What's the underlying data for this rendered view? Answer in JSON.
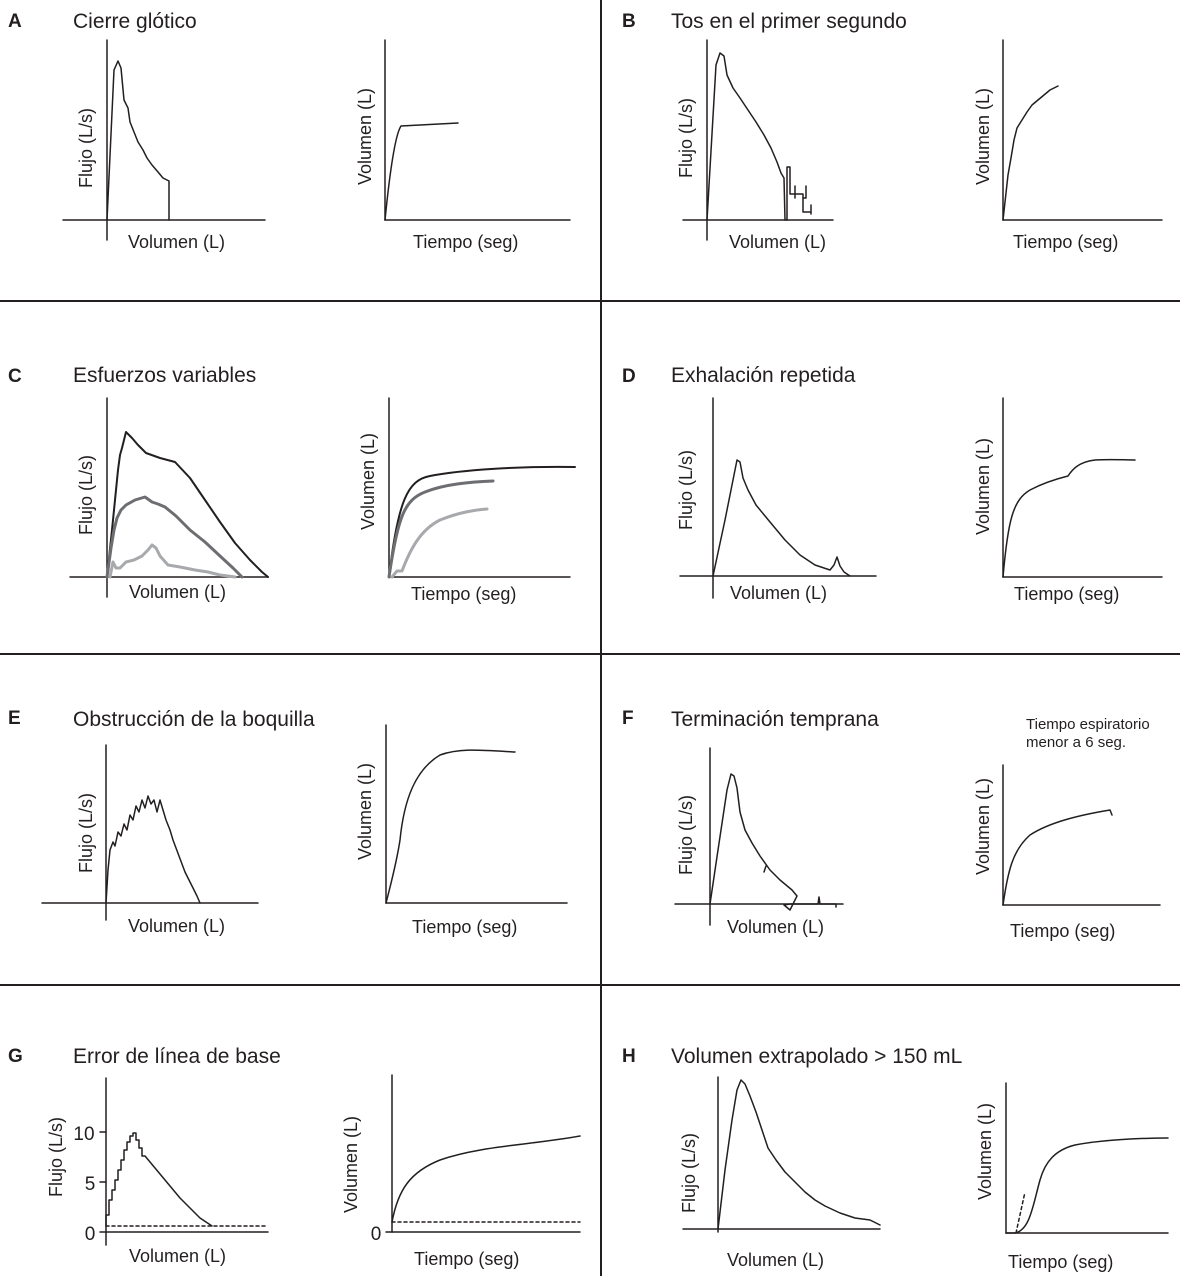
{
  "figure": {
    "panels": [
      {
        "id": "A",
        "letter": "A",
        "title": "Cierre glótico",
        "fv": {
          "x_label": "Volumen (L)",
          "y_label": "Flujo (L/s)"
        },
        "vt": {
          "x_label": "Tiempo (seg)",
          "y_label": "Volumen (L)"
        }
      },
      {
        "id": "B",
        "letter": "B",
        "title": "Tos en el primer segundo",
        "fv": {
          "x_label": "Volumen (L)",
          "y_label": "Flujo (L/s)"
        },
        "vt": {
          "x_label": "Tiempo (seg)",
          "y_label": "Volumen (L)"
        }
      },
      {
        "id": "C",
        "letter": "C",
        "title": "Esfuerzos variables",
        "fv": {
          "x_label": "Volumen (L)",
          "y_label": "Flujo (L/s)"
        },
        "vt": {
          "x_label": "Tiempo (seg)",
          "y_label": "Volumen (L)"
        }
      },
      {
        "id": "D",
        "letter": "D",
        "title": "Exhalación repetida",
        "fv": {
          "x_label": "Volumen (L)",
          "y_label": "Flujo (L/s)"
        },
        "vt": {
          "x_label": "Tiempo (seg)",
          "y_label": "Volumen (L)"
        }
      },
      {
        "id": "E",
        "letter": "E",
        "title": "Obstrucción de la boquilla",
        "fv": {
          "x_label": "Volumen (L)",
          "y_label": "Flujo (L/s)"
        },
        "vt": {
          "x_label": "Tiempo (seg)",
          "y_label": "Volumen (L)"
        }
      },
      {
        "id": "F",
        "letter": "F",
        "title": "Terminación temprana",
        "fv": {
          "x_label": "Volumen (L)",
          "y_label": "Flujo (L/s)"
        },
        "vt": {
          "x_label": "Tiempo (seg)",
          "y_label": "Volumen (L)"
        },
        "note": [
          "Tiempo espiratorio",
          "menor a 6 seg."
        ]
      },
      {
        "id": "G",
        "letter": "G",
        "title": "Error de línea de base",
        "fv": {
          "x_label": "Volumen (L)",
          "y_label": "Flujo (L/s)",
          "y_ticks": [
            "10",
            "5",
            "0"
          ]
        },
        "vt": {
          "x_label": "Tiempo (seg)",
          "y_label": "Volumen (L)",
          "y_ticks": [
            "0"
          ]
        }
      },
      {
        "id": "H",
        "letter": "H",
        "title": "Volumen extrapolado > 150 mL",
        "fv": {
          "x_label": "Volumen (L)",
          "y_label": "Flujo (L/s)"
        },
        "vt": {
          "x_label": "Tiempo (seg)",
          "y_label": "Volumen (L)"
        }
      }
    ],
    "colors": {
      "ink": "#231f20",
      "mid_gray": "#6d6e71",
      "light_gray": "#a7a9ac"
    }
  }
}
